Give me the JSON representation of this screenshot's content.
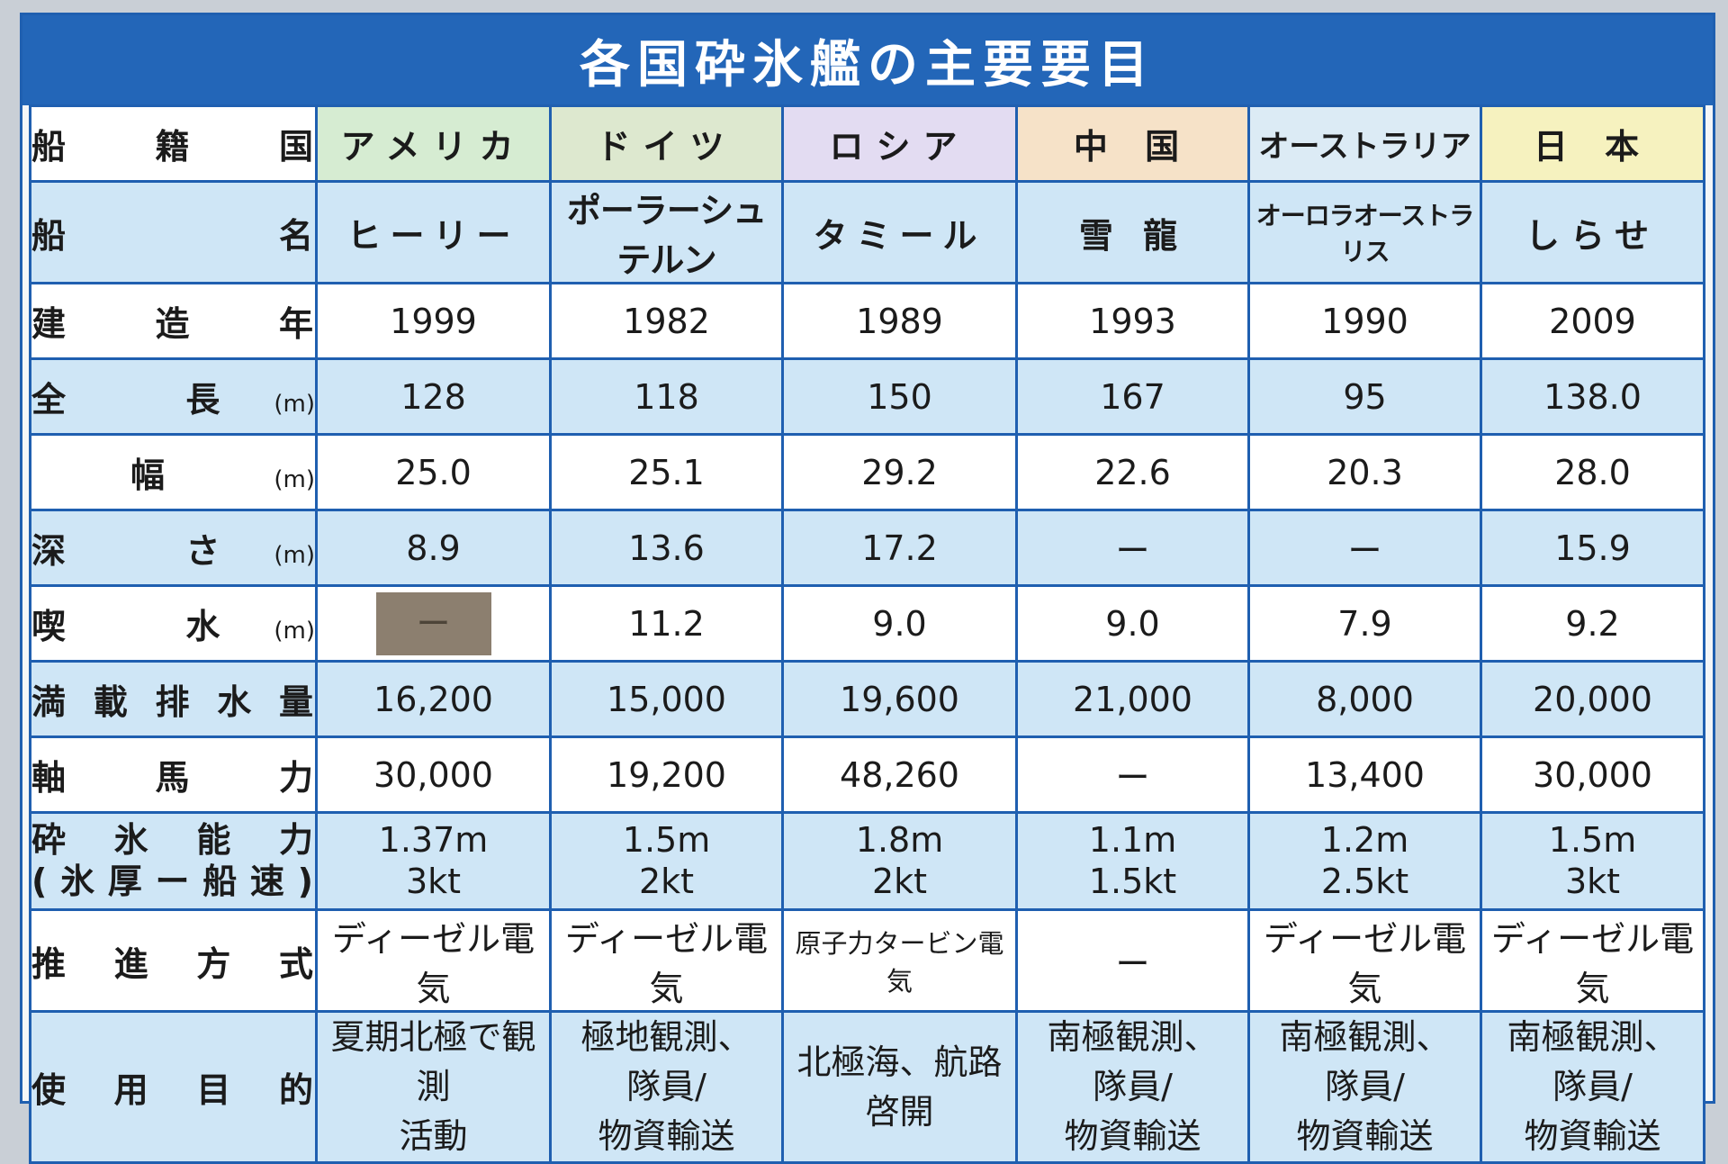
{
  "title": "各国砕氷艦の主要要目",
  "row_labels": {
    "country": "船 籍 国",
    "ship_name": "船 名",
    "year": "建 造 年",
    "length": "全 長",
    "length_unit": "(m)",
    "beam": "幅",
    "beam_unit": "(m)",
    "depth": "深 さ",
    "depth_unit": "(m)",
    "draft": "喫 水",
    "draft_unit": "(m)",
    "displacement": "満載排水量",
    "horsepower": "軸 馬 力",
    "icebreaking_line1": "砕氷能力",
    "icebreaking_line2": "(氷厚ー船速)",
    "propulsion": "推進方式",
    "purpose": "使用目的"
  },
  "columns": [
    {
      "country": "アメリカ",
      "ship": "ヒーリー",
      "year": "1999",
      "length": "128",
      "beam": "25.0",
      "depth": "8.9",
      "draft": "ー",
      "displacement": "16,200",
      "horsepower": "30,000",
      "ice_thickness": "1.37m",
      "ice_speed": "3kt",
      "propulsion": "ディーゼル電気",
      "purpose_1": "夏期北極で観測",
      "purpose_2": "活動"
    },
    {
      "country": "ドイツ",
      "ship": "ポーラーシュテルン",
      "year": "1982",
      "length": "118",
      "beam": "25.1",
      "depth": "13.6",
      "draft": "11.2",
      "displacement": "15,000",
      "horsepower": "19,200",
      "ice_thickness": "1.5m",
      "ice_speed": "2kt",
      "propulsion": "ディーゼル電気",
      "purpose_1": "極地観測、隊員/",
      "purpose_2": "物資輸送"
    },
    {
      "country": "ロシア",
      "ship": "タミール",
      "year": "1989",
      "length": "150",
      "beam": "29.2",
      "depth": "17.2",
      "draft": "9.0",
      "displacement": "19,600",
      "horsepower": "48,260",
      "ice_thickness": "1.8m",
      "ice_speed": "2kt",
      "propulsion": "原子力タービン電気",
      "purpose_1": "北極海、航路啓開",
      "purpose_2": ""
    },
    {
      "country": "中 国",
      "ship": "雪 龍",
      "year": "1993",
      "length": "167",
      "beam": "22.6",
      "depth": "ー",
      "draft": "9.0",
      "displacement": "21,000",
      "horsepower": "ー",
      "ice_thickness": "1.1m",
      "ice_speed": "1.5kt",
      "propulsion": "ー",
      "purpose_1": "南極観測、隊員/",
      "purpose_2": "物資輸送"
    },
    {
      "country": "オーストラリア",
      "ship": "オーロラオーストラリス",
      "year": "1990",
      "length": "95",
      "beam": "20.3",
      "depth": "ー",
      "draft": "7.9",
      "displacement": "8,000",
      "horsepower": "13,400",
      "ice_thickness": "1.2m",
      "ice_speed": "2.5kt",
      "propulsion": "ディーゼル電気",
      "purpose_1": "南極観測、隊員/",
      "purpose_2": "物資輸送"
    },
    {
      "country": "日 本",
      "ship": "しらせ",
      "year": "2009",
      "length": "138.0",
      "beam": "28.0",
      "depth": "15.9",
      "draft": "9.2",
      "displacement": "20,000",
      "horsepower": "30,000",
      "ice_thickness": "1.5m",
      "ice_speed": "3kt",
      "propulsion": "ディーゼル電気",
      "purpose_1": "南極観測、隊員/",
      "purpose_2": "物資輸送"
    }
  ],
  "colors": {
    "frame": "#1f5fb0",
    "title_bar": "#2366b8",
    "row_blue": "#cfe6f6",
    "ship_silhouette": "#f2cfa0"
  }
}
